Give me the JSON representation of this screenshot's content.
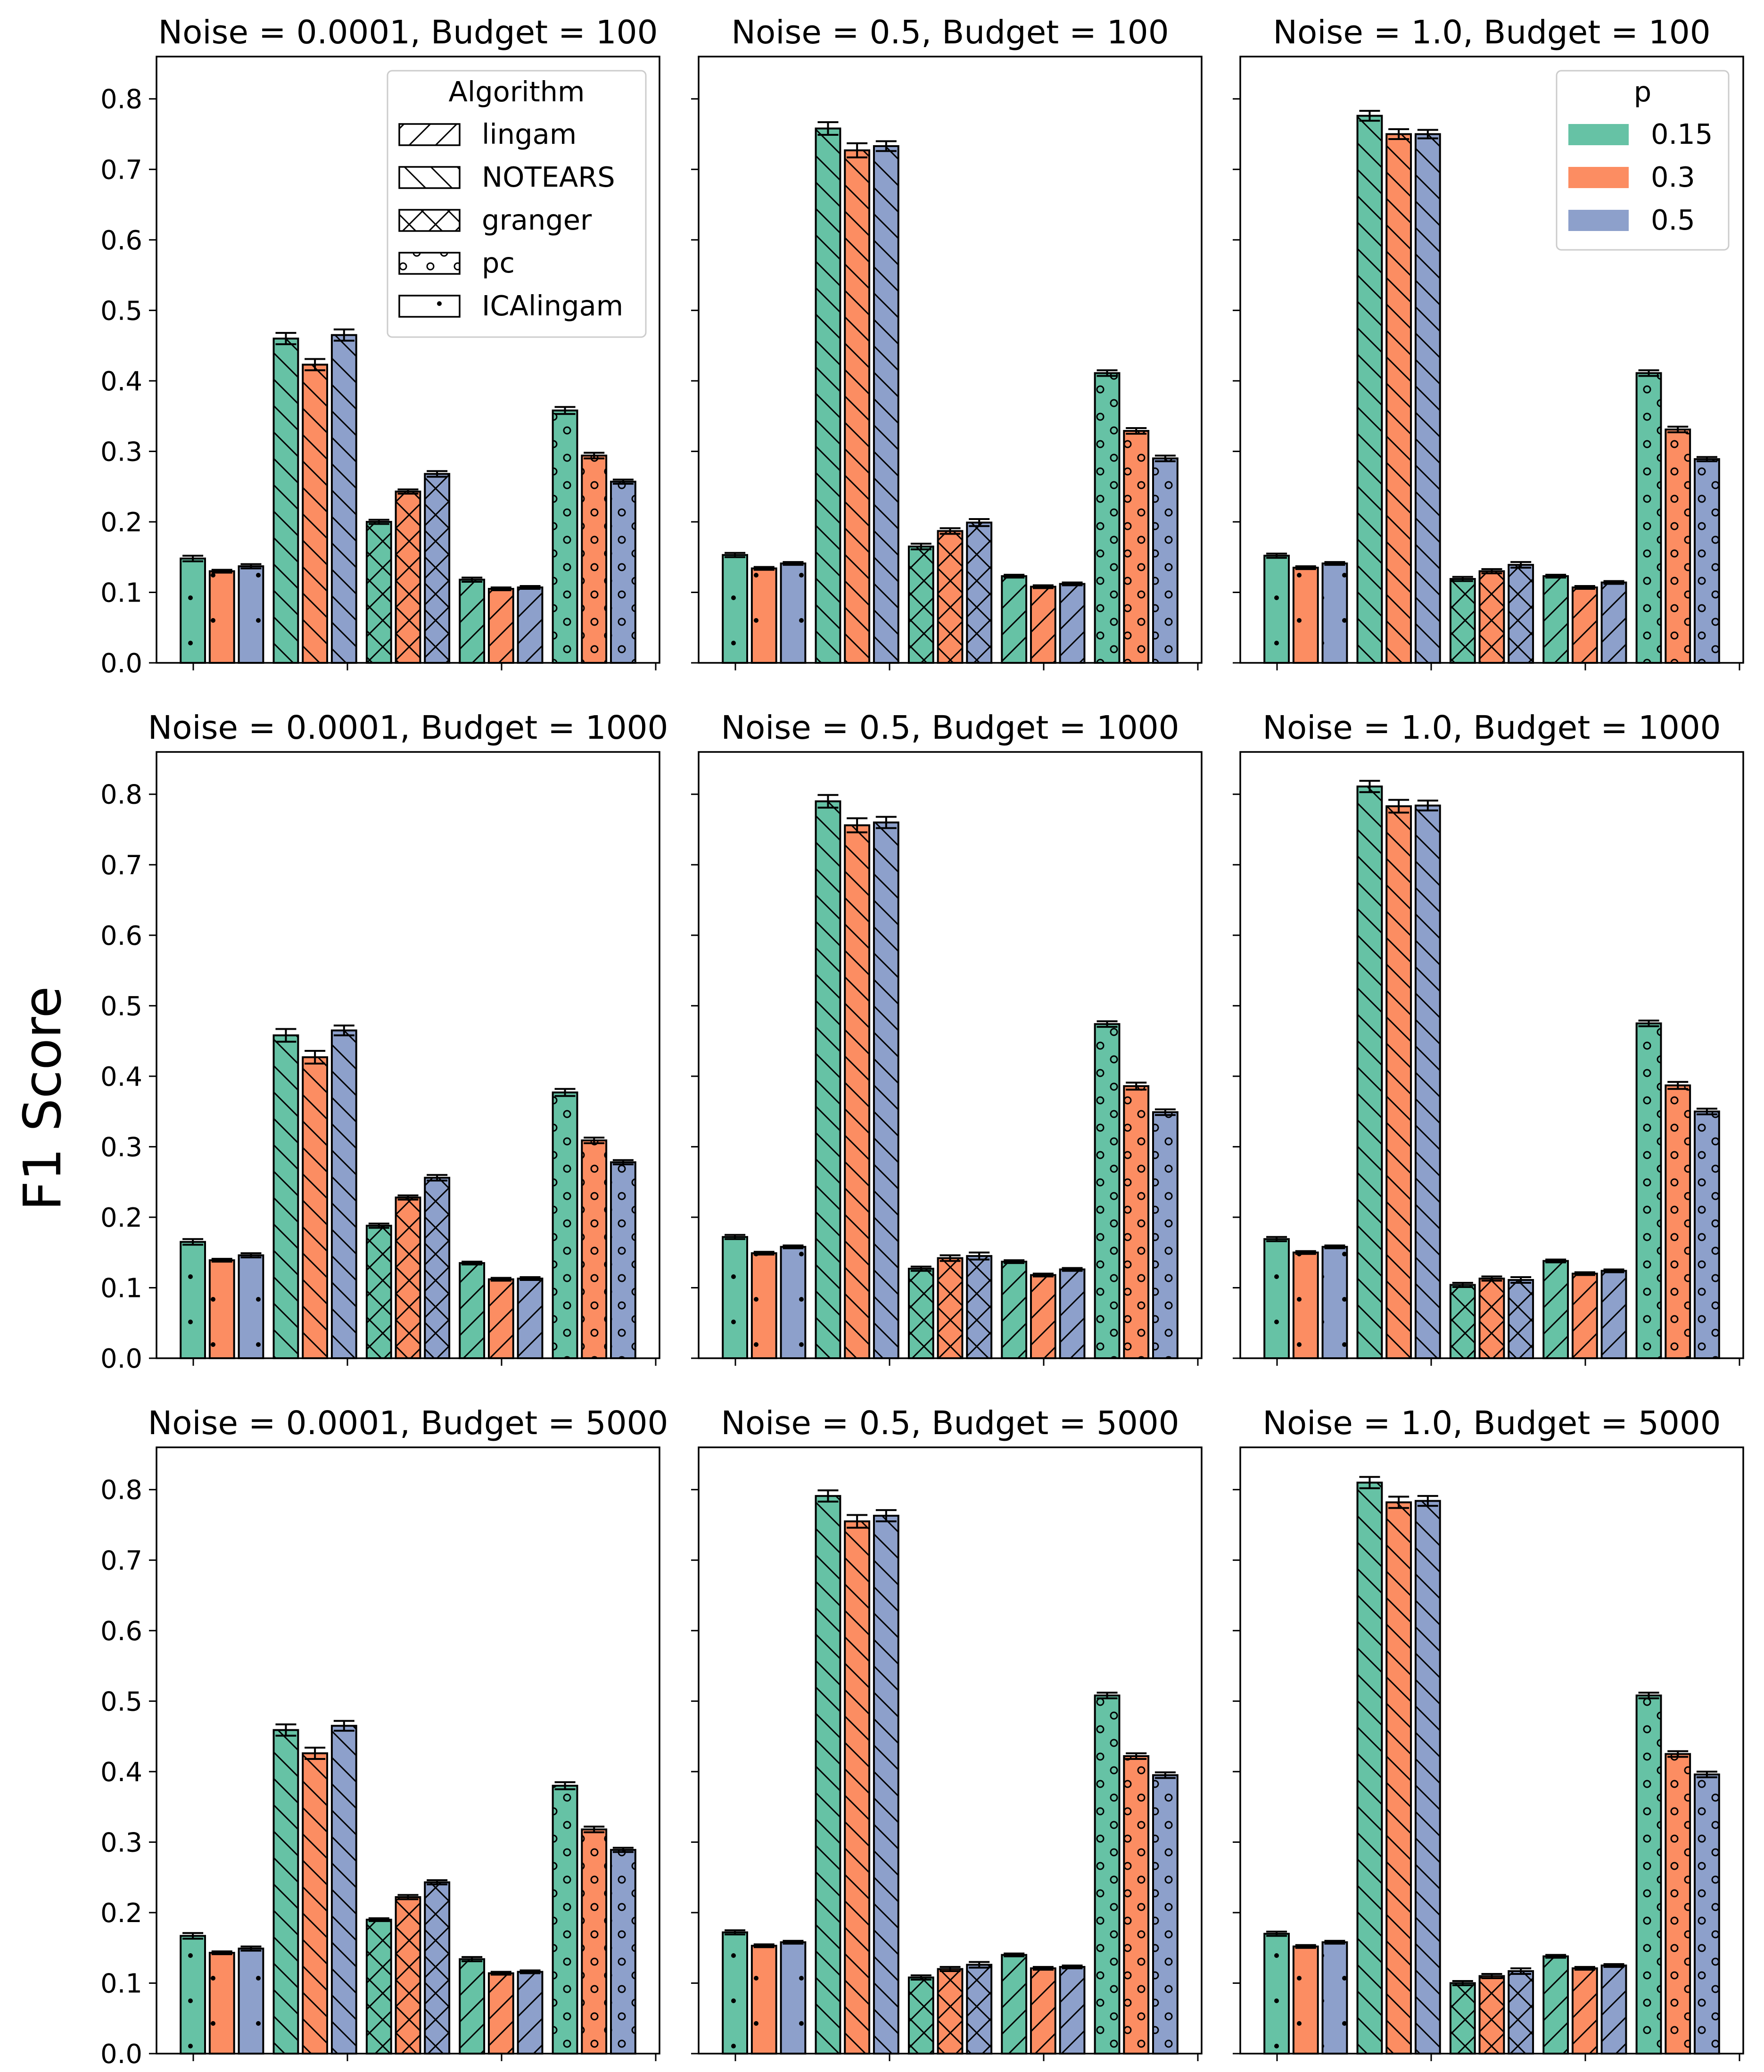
{
  "figure": {
    "ylabel": "F1 Score"
  },
  "legend_algorithm": {
    "title": "Algorithm",
    "placement": "top-right of first panel",
    "items": [
      {
        "label": "lingam",
        "hatch": "slash"
      },
      {
        "label": "NOTEARS",
        "hatch": "backslash"
      },
      {
        "label": "granger",
        "hatch": "cross"
      },
      {
        "label": "pc",
        "hatch": "circles"
      },
      {
        "label": "ICAlingam",
        "hatch": "dots"
      }
    ]
  },
  "legend_p": {
    "title": "p",
    "placement": "top-right of third panel",
    "items": [
      {
        "label": "0.15",
        "color": "#66c2a5"
      },
      {
        "label": "0.3",
        "color": "#fc8d62"
      },
      {
        "label": "0.5",
        "color": "#8da0cb"
      }
    ]
  },
  "chart_data": {
    "type": "bar",
    "layout": "3x3 grid of grouped bar charts with error bars, shared y axis per row",
    "ylim": [
      0,
      0.86
    ],
    "yticks": [
      "0.0",
      "0.1",
      "0.2",
      "0.3",
      "0.4",
      "0.5",
      "0.6",
      "0.7",
      "0.8"
    ],
    "group_order": [
      "ICAlingam",
      "NOTEARS",
      "granger",
      "lingam",
      "pc"
    ],
    "series_colors": [
      "#66c2a5",
      "#fc8d62",
      "#8da0cb"
    ],
    "series_names": [
      "0.15",
      "0.3",
      "0.5"
    ],
    "panels": [
      {
        "title": "Noise = 0.0001, Budget = 100",
        "values": [
          [
            0.148,
            0.13,
            0.137
          ],
          [
            0.46,
            0.423,
            0.465
          ],
          [
            0.2,
            0.243,
            0.268
          ],
          [
            0.118,
            0.105,
            0.107
          ],
          [
            0.358,
            0.294,
            0.257
          ]
        ],
        "errors": [
          [
            0.004,
            0.002,
            0.003
          ],
          [
            0.008,
            0.008,
            0.008
          ],
          [
            0.003,
            0.003,
            0.004
          ],
          [
            0.003,
            0.002,
            0.002
          ],
          [
            0.005,
            0.004,
            0.003
          ]
        ]
      },
      {
        "title": "Noise = 0.5, Budget = 100",
        "values": [
          [
            0.153,
            0.134,
            0.141
          ],
          [
            0.758,
            0.727,
            0.733
          ],
          [
            0.165,
            0.187,
            0.199
          ],
          [
            0.123,
            0.108,
            0.112
          ],
          [
            0.411,
            0.329,
            0.29
          ]
        ],
        "errors": [
          [
            0.003,
            0.002,
            0.002
          ],
          [
            0.009,
            0.01,
            0.007
          ],
          [
            0.004,
            0.004,
            0.005
          ],
          [
            0.002,
            0.002,
            0.002
          ],
          [
            0.004,
            0.004,
            0.004
          ]
        ]
      },
      {
        "title": "Noise = 1.0, Budget = 100",
        "values": [
          [
            0.152,
            0.135,
            0.141
          ],
          [
            0.776,
            0.75,
            0.75
          ],
          [
            0.119,
            0.13,
            0.139
          ],
          [
            0.123,
            0.107,
            0.114
          ],
          [
            0.411,
            0.331,
            0.289
          ]
        ],
        "errors": [
          [
            0.003,
            0.002,
            0.002
          ],
          [
            0.007,
            0.007,
            0.006
          ],
          [
            0.003,
            0.003,
            0.004
          ],
          [
            0.002,
            0.002,
            0.002
          ],
          [
            0.004,
            0.004,
            0.003
          ]
        ]
      },
      {
        "title": "Noise = 0.0001, Budget = 1000",
        "values": [
          [
            0.165,
            0.139,
            0.146
          ],
          [
            0.458,
            0.427,
            0.465
          ],
          [
            0.188,
            0.228,
            0.256
          ],
          [
            0.135,
            0.112,
            0.113
          ],
          [
            0.377,
            0.309,
            0.278
          ]
        ],
        "errors": [
          [
            0.004,
            0.002,
            0.003
          ],
          [
            0.009,
            0.009,
            0.007
          ],
          [
            0.003,
            0.003,
            0.004
          ],
          [
            0.002,
            0.002,
            0.002
          ],
          [
            0.005,
            0.004,
            0.003
          ]
        ]
      },
      {
        "title": "Noise = 0.5, Budget = 1000",
        "values": [
          [
            0.172,
            0.149,
            0.158
          ],
          [
            0.79,
            0.756,
            0.76
          ],
          [
            0.127,
            0.142,
            0.145
          ],
          [
            0.137,
            0.118,
            0.126
          ],
          [
            0.474,
            0.386,
            0.349
          ]
        ],
        "errors": [
          [
            0.003,
            0.002,
            0.002
          ],
          [
            0.009,
            0.01,
            0.008
          ],
          [
            0.003,
            0.004,
            0.005
          ],
          [
            0.002,
            0.002,
            0.002
          ],
          [
            0.004,
            0.005,
            0.004
          ]
        ]
      },
      {
        "title": "Noise = 1.0, Budget = 1000",
        "values": [
          [
            0.169,
            0.15,
            0.158
          ],
          [
            0.811,
            0.783,
            0.784
          ],
          [
            0.104,
            0.113,
            0.111
          ],
          [
            0.138,
            0.12,
            0.124
          ],
          [
            0.475,
            0.387,
            0.35
          ]
        ],
        "errors": [
          [
            0.003,
            0.002,
            0.002
          ],
          [
            0.008,
            0.009,
            0.007
          ],
          [
            0.003,
            0.003,
            0.004
          ],
          [
            0.002,
            0.002,
            0.002
          ],
          [
            0.004,
            0.005,
            0.004
          ]
        ]
      },
      {
        "title": "Noise = 0.0001, Budget = 5000",
        "values": [
          [
            0.167,
            0.143,
            0.149
          ],
          [
            0.459,
            0.426,
            0.465
          ],
          [
            0.19,
            0.222,
            0.243
          ],
          [
            0.134,
            0.114,
            0.116
          ],
          [
            0.38,
            0.318,
            0.289
          ]
        ],
        "errors": [
          [
            0.004,
            0.002,
            0.003
          ],
          [
            0.008,
            0.008,
            0.007
          ],
          [
            0.002,
            0.003,
            0.003
          ],
          [
            0.003,
            0.002,
            0.002
          ],
          [
            0.005,
            0.004,
            0.003
          ]
        ]
      },
      {
        "title": "Noise = 0.5, Budget = 5000",
        "values": [
          [
            0.172,
            0.153,
            0.158
          ],
          [
            0.791,
            0.755,
            0.763
          ],
          [
            0.108,
            0.12,
            0.126
          ],
          [
            0.14,
            0.121,
            0.123
          ],
          [
            0.508,
            0.422,
            0.395
          ]
        ],
        "errors": [
          [
            0.003,
            0.002,
            0.002
          ],
          [
            0.008,
            0.009,
            0.008
          ],
          [
            0.003,
            0.003,
            0.004
          ],
          [
            0.002,
            0.002,
            0.002
          ],
          [
            0.004,
            0.004,
            0.004
          ]
        ]
      },
      {
        "title": "Noise = 1.0, Budget = 5000",
        "values": [
          [
            0.17,
            0.152,
            0.158
          ],
          [
            0.81,
            0.782,
            0.784
          ],
          [
            0.1,
            0.11,
            0.117
          ],
          [
            0.138,
            0.121,
            0.125
          ],
          [
            0.508,
            0.425,
            0.396
          ]
        ],
        "errors": [
          [
            0.003,
            0.002,
            0.002
          ],
          [
            0.008,
            0.008,
            0.007
          ],
          [
            0.003,
            0.003,
            0.004
          ],
          [
            0.002,
            0.002,
            0.002
          ],
          [
            0.004,
            0.004,
            0.004
          ]
        ]
      }
    ]
  }
}
